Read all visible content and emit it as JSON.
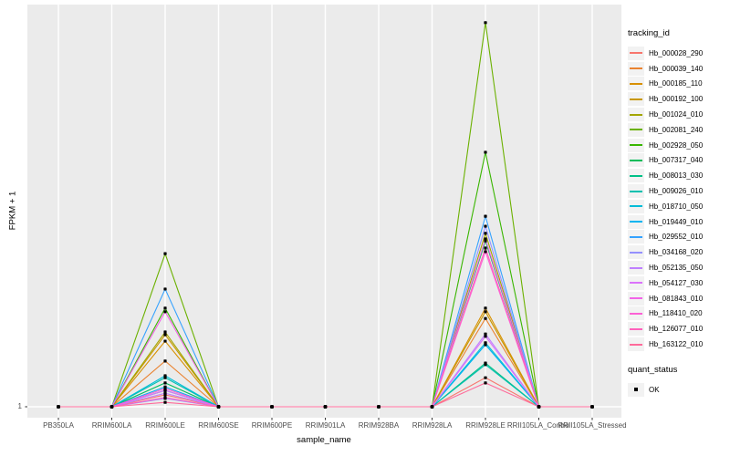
{
  "chart_data": {
    "type": "line",
    "title": "",
    "xlabel": "sample_name",
    "ylabel": "FPKM + 1",
    "y_ticks": [
      "1"
    ],
    "baseline_value": 1,
    "value_scale": "relative_height_0_1_of_panel",
    "grid": "major-white-on-gray",
    "legend_position": "right",
    "categories": [
      "PB350LA",
      "RRIM600LA",
      "RRIM600LE",
      "RRIM600SE",
      "RRIM600PE",
      "RRIM901LA",
      "RRIM928BA",
      "RRIM928LA",
      "RRIM928LE",
      "RRII105LA_Control",
      "RRII105LA_Stressed"
    ],
    "peak_categories": [
      "RRIM600LE",
      "RRIM928LE"
    ],
    "series": [
      {
        "name": "Hb_000028_290",
        "color": "#F8766D",
        "peaks": {
          "RRIM600LE": 0.03,
          "RRIM928LE": 0.073
        }
      },
      {
        "name": "Hb_000039_140",
        "color": "#EA8331",
        "peaks": {
          "RRIM600LE": 0.115,
          "RRIM928LE": 0.222
        }
      },
      {
        "name": "Hb_000185_110",
        "color": "#D89000",
        "peaks": {
          "RRIM600LE": 0.165,
          "RRIM928LE": 0.248
        }
      },
      {
        "name": "Hb_000192_100",
        "color": "#C99800",
        "peaks": {
          "RRIM600LE": 0.181,
          "RRIM928LE": 0.239
        }
      },
      {
        "name": "Hb_001024_010",
        "color": "#A3A500",
        "peaks": {
          "RRIM600LE": 0.188,
          "RRIM928LE": 0.436
        }
      },
      {
        "name": "Hb_002081_240",
        "color": "#6BB100",
        "peaks": {
          "RRIM600LE": 0.385,
          "RRIM928LE": 0.966
        }
      },
      {
        "name": "Hb_002928_050",
        "color": "#39B600",
        "peaks": {
          "RRIM600LE": 0.248,
          "RRIM928LE": 0.64
        }
      },
      {
        "name": "Hb_007317_040",
        "color": "#00BC59",
        "peaks": {
          "RRIM600LE": 0.06,
          "RRIM928LE": 0.417
        }
      },
      {
        "name": "Hb_008013_030",
        "color": "#00C087",
        "peaks": {
          "RRIM600LE": 0.041,
          "RRIM928LE": 0.11
        }
      },
      {
        "name": "Hb_009026_010",
        "color": "#00C0AF",
        "peaks": {
          "RRIM600LE": 0.073,
          "RRIM928LE": 0.106
        }
      },
      {
        "name": "Hb_018710_050",
        "color": "#00BCD8",
        "peaks": {
          "RRIM600LE": 0.078,
          "RRIM928LE": 0.161
        }
      },
      {
        "name": "Hb_019449_010",
        "color": "#00B4F0",
        "peaks": {
          "RRIM600LE": 0.05,
          "RRIM928LE": 0.156
        }
      },
      {
        "name": "Hb_029552_010",
        "color": "#35A2FF",
        "peaks": {
          "RRIM600LE": 0.296,
          "RRIM928LE": 0.479
        }
      },
      {
        "name": "Hb_034168_020",
        "color": "#9590FF",
        "peaks": {
          "RRIM600LE": 0.021,
          "RRIM928LE": 0.454
        }
      },
      {
        "name": "Hb_052135_050",
        "color": "#BF80FF",
        "peaks": {
          "RRIM600LE": 0.034,
          "RRIM928LE": 0.183
        }
      },
      {
        "name": "Hb_054127_030",
        "color": "#DB72FB",
        "peaks": {
          "RRIM600LE": 0.041,
          "RRIM928LE": 0.177
        }
      },
      {
        "name": "Hb_081843_010",
        "color": "#F265E8",
        "peaks": {
          "RRIM600LE": 0.239,
          "RRIM928LE": 0.422
        }
      },
      {
        "name": "Hb_118410_020",
        "color": "#FC61D5",
        "peaks": {
          "RRIM600LE": 0.046,
          "RRIM928LE": 0.39
        }
      },
      {
        "name": "Hb_126077_010",
        "color": "#FF62BC",
        "peaks": {
          "RRIM600LE": 0.023,
          "RRIM928LE": 0.399
        }
      },
      {
        "name": "Hb_163122_010",
        "color": "#FF6A9A",
        "peaks": {
          "RRIM600LE": 0.011,
          "RRIM928LE": 0.06
        }
      }
    ]
  },
  "legend": {
    "tracking": {
      "title": "tracking_id"
    },
    "quant": {
      "title": "quant_status",
      "items": [
        {
          "label": "OK",
          "marker": "black-square"
        }
      ]
    }
  },
  "style": {
    "panel_bg": "#EBEBEB",
    "grid_color": "#FFFFFF",
    "axis_text_color": "#4D4D4D",
    "tick_color": "#333333",
    "legend_key_bg": "#F2F2F2",
    "point_color": "#000000"
  }
}
